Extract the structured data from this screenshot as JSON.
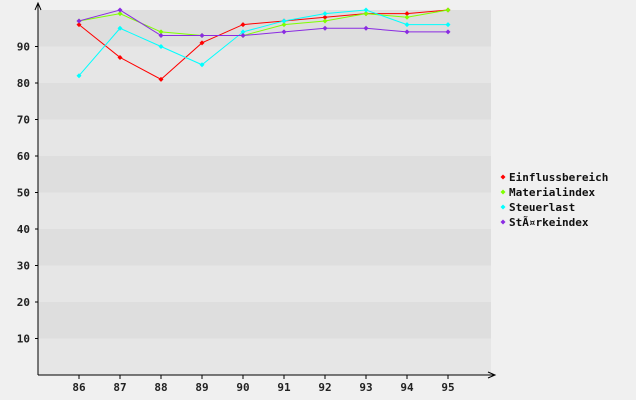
{
  "chart_data": {
    "type": "line",
    "categories": [
      "86",
      "87",
      "88",
      "89",
      "90",
      "91",
      "92",
      "93",
      "94",
      "95"
    ],
    "ylim": [
      0,
      100
    ],
    "yticks": [
      10,
      20,
      30,
      40,
      50,
      60,
      70,
      80,
      90
    ],
    "grid": "horizontal bands",
    "legend_position": "right",
    "series": [
      {
        "name": "Einflussbereich",
        "color": "#ff0000",
        "values": [
          96,
          87,
          81,
          91,
          96,
          97,
          98,
          99,
          99,
          100
        ]
      },
      {
        "name": "Materialindex",
        "color": "#7fff00",
        "values": [
          97,
          99,
          94,
          93,
          93,
          96,
          97,
          99,
          98,
          100
        ]
      },
      {
        "name": "Steuerlast",
        "color": "#00ffff",
        "values": [
          82,
          95,
          90,
          85,
          94,
          97,
          99,
          100,
          96,
          96
        ]
      },
      {
        "name": "StÃ¤rkeindex",
        "color": "#8a2be2",
        "values": [
          97,
          100,
          93,
          93,
          93,
          94,
          95,
          95,
          94,
          94
        ]
      }
    ]
  }
}
